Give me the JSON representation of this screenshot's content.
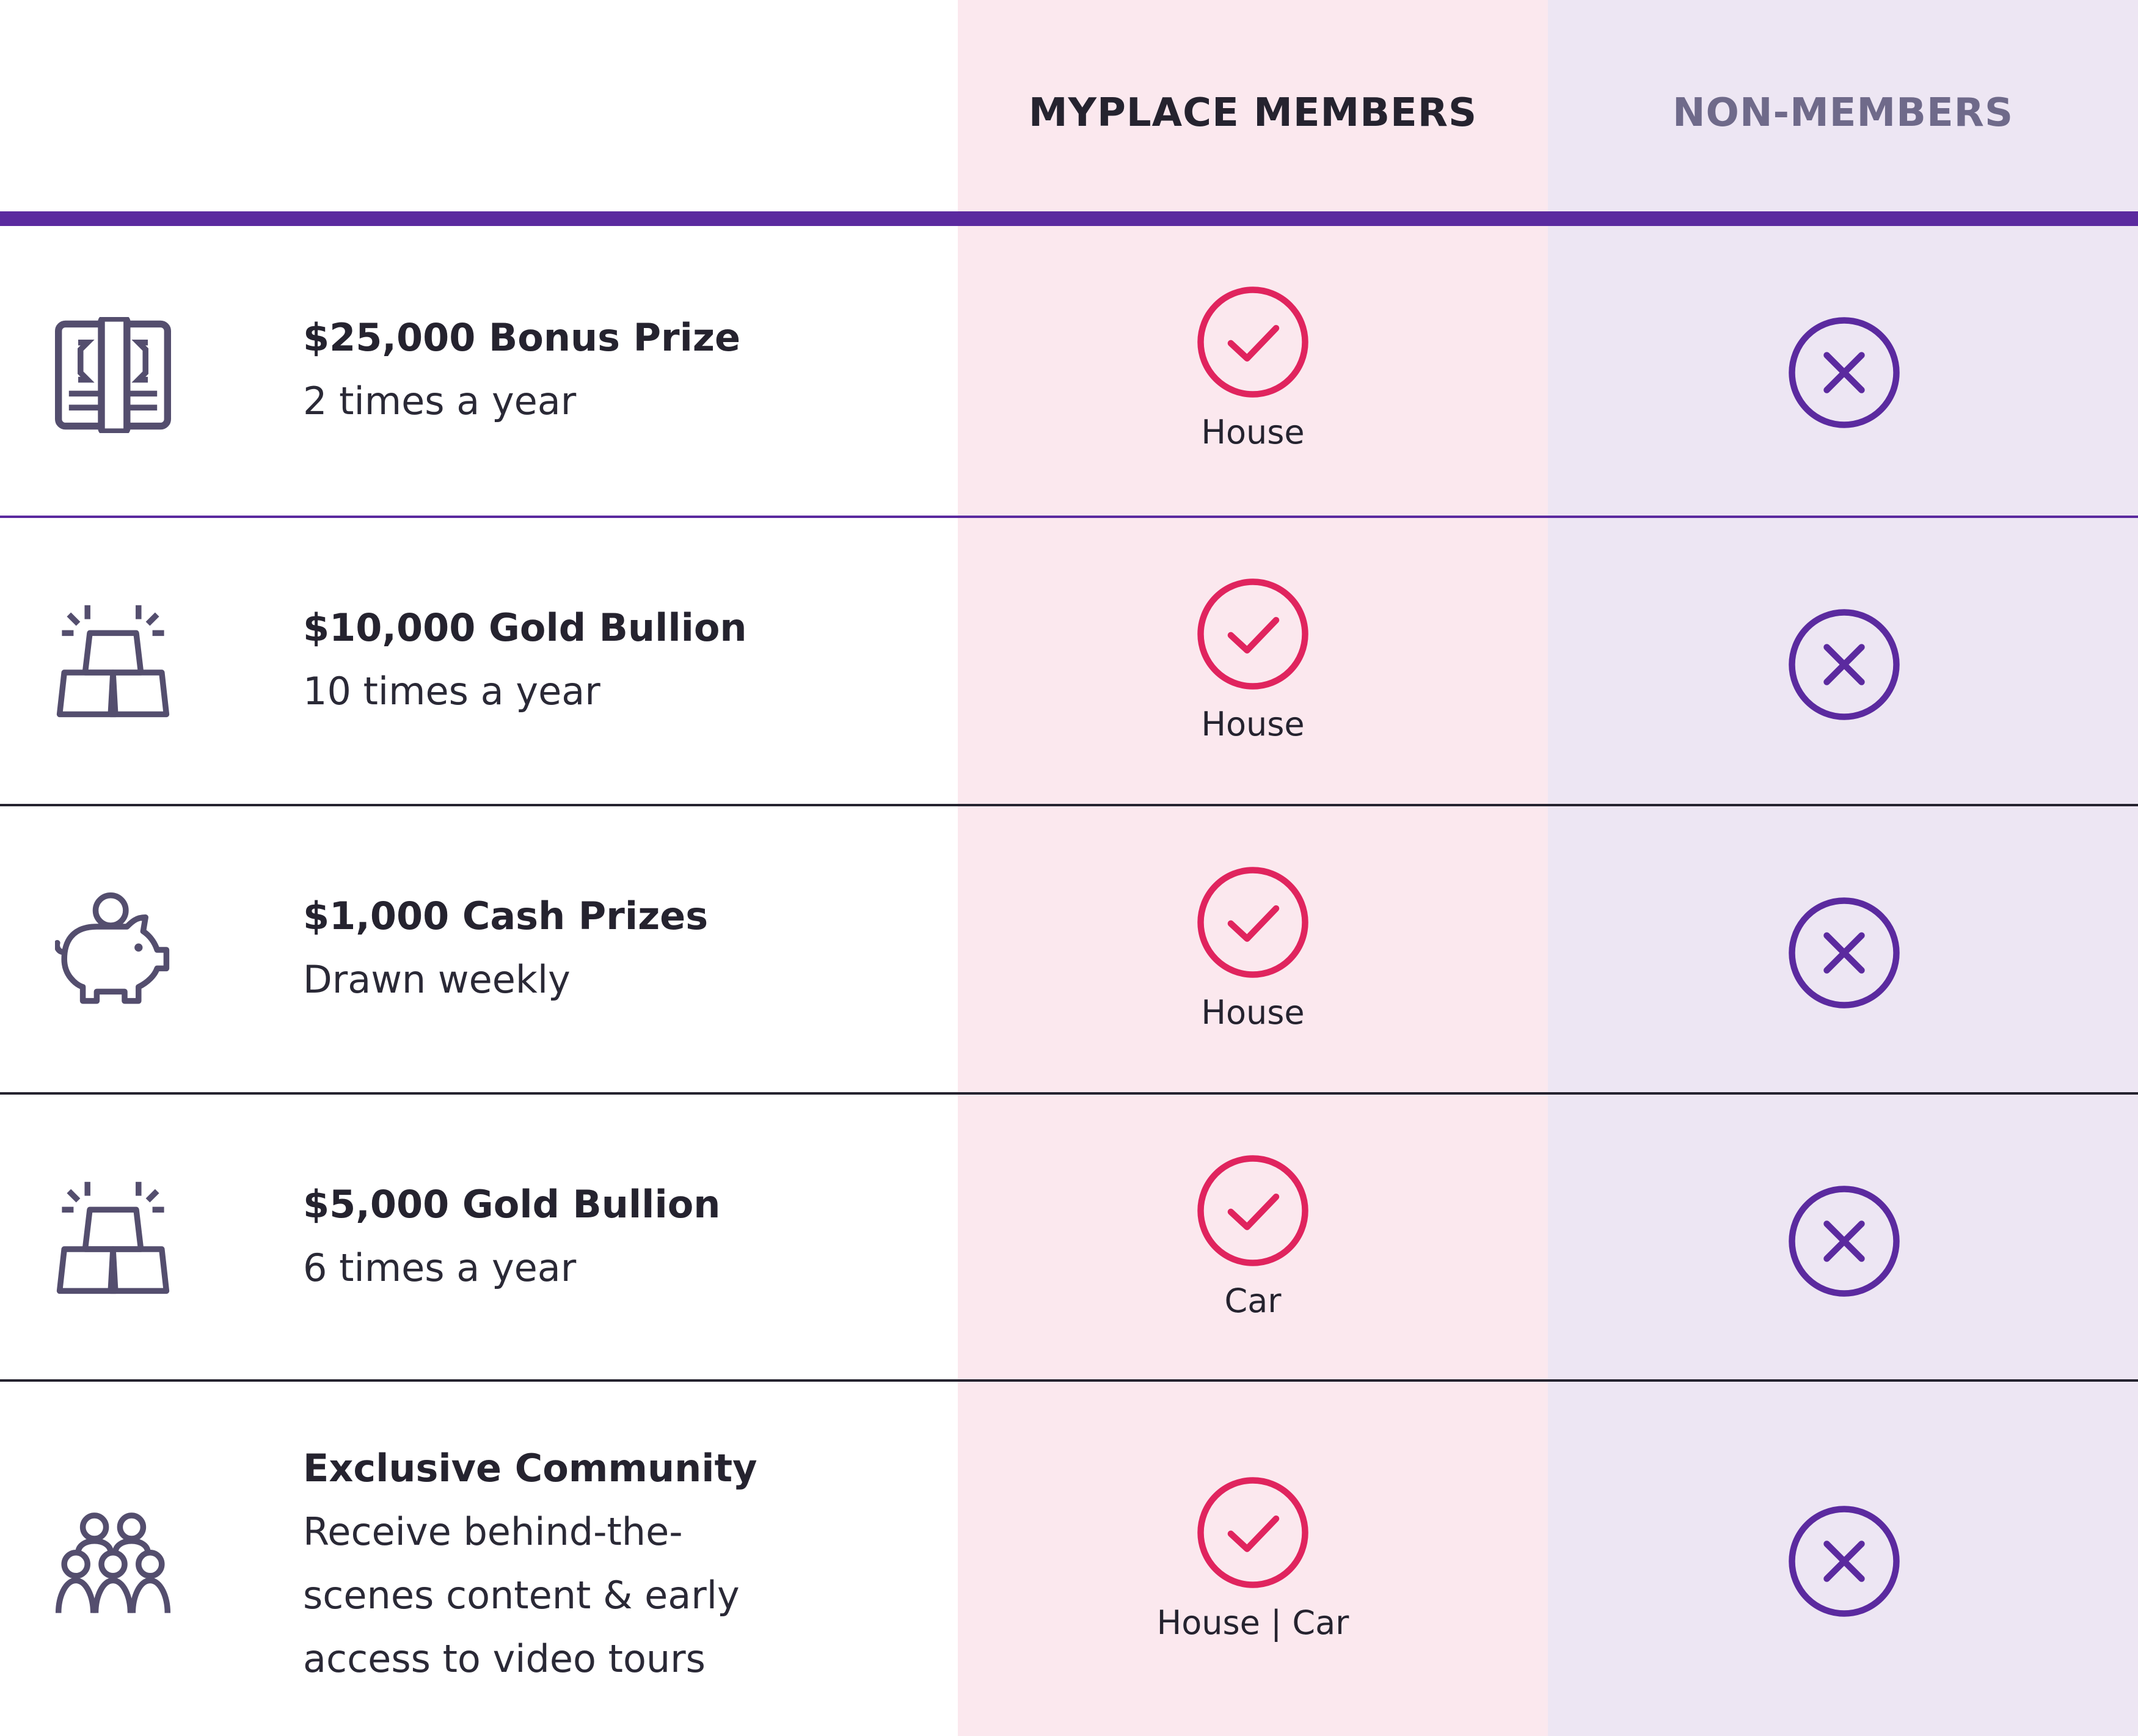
{
  "colors": {
    "members_bg": "#fbe8ee",
    "non_members_bg": "#ede6f3",
    "header_bar": "#5b2a9f",
    "check": "#e0245e",
    "cross": "#5b2a9f",
    "icon": "#544e6e",
    "header_members_text": "#25232f",
    "header_non_members_text": "#6f6a8a",
    "divider_purple": "#5b2a9f",
    "divider_dark": "#25232f"
  },
  "header": {
    "members": "MYPLACE MEMBERS",
    "non_members": "NON-MEMBERS"
  },
  "rows": [
    {
      "icon": "cash-stack-icon",
      "title": "$25,000 Bonus Prize",
      "subtitle": "2 times a year",
      "member_value": "House",
      "member_status": "check-icon",
      "non_member_status": "cross-icon"
    },
    {
      "icon": "gold-bullion-icon",
      "title": "$10,000 Gold Bullion",
      "subtitle": "10 times a year",
      "member_value": "House",
      "member_status": "check-icon",
      "non_member_status": "cross-icon"
    },
    {
      "icon": "piggy-bank-icon",
      "title": "$1,000 Cash Prizes",
      "subtitle": "Drawn weekly",
      "member_value": "House",
      "member_status": "check-icon",
      "non_member_status": "cross-icon"
    },
    {
      "icon": "gold-bullion-icon",
      "title": "$5,000 Gold Bullion",
      "subtitle": "6 times a year",
      "member_value": "Car",
      "member_status": "check-icon",
      "non_member_status": "cross-icon"
    },
    {
      "icon": "community-icon",
      "title": "Exclusive Community",
      "subtitle": "Receive behind-the-\nscenes content & early\naccess to video tours",
      "member_value": "House | Car",
      "member_status": "check-icon",
      "non_member_status": "cross-icon"
    }
  ]
}
